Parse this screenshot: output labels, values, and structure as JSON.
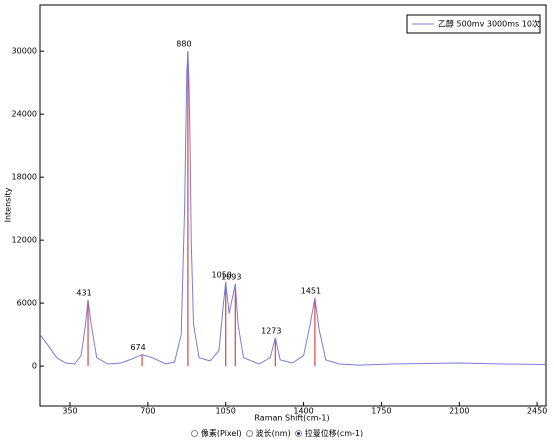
{
  "chart_data": {
    "type": "line",
    "x_label": "Raman Shift(cm-1)",
    "y_label": "Intensity",
    "xlim": [
      215,
      2490
    ],
    "ylim": [
      -3800,
      34400
    ],
    "xticks": [
      350,
      700,
      1050,
      1400,
      1750,
      2100,
      2450
    ],
    "yticks": [
      0,
      6000,
      12000,
      18000,
      24000,
      30000
    ],
    "series": [
      {
        "name": "乙醇 500mv 3000ms 10次",
        "color": "#7b7bd6",
        "x": [
          215,
          250,
          290,
          330,
          370,
          400,
          420,
          431,
          445,
          470,
          520,
          580,
          630,
          674,
          720,
          780,
          820,
          850,
          865,
          875,
          880,
          885,
          890,
          895,
          905,
          930,
          980,
          1020,
          1040,
          1050,
          1065,
          1080,
          1093,
          1105,
          1130,
          1200,
          1250,
          1273,
          1295,
          1350,
          1400,
          1430,
          1451,
          1470,
          1500,
          1560,
          1650,
          1800,
          2100,
          2300,
          2490
        ],
        "values": [
          3000,
          2000,
          800,
          300,
          200,
          1000,
          4000,
          6300,
          4000,
          800,
          200,
          300,
          700,
          1100,
          800,
          200,
          400,
          3000,
          15000,
          28000,
          30000,
          27000,
          21000,
          12000,
          4000,
          800,
          500,
          1500,
          6000,
          8000,
          5000,
          6500,
          7800,
          4000,
          800,
          200,
          800,
          2700,
          600,
          300,
          1000,
          4000,
          6500,
          3500,
          600,
          200,
          100,
          200,
          300,
          200,
          150
        ]
      }
    ],
    "peaks": {
      "color": "#e04040",
      "x": [
        431,
        674,
        880,
        1050,
        1093,
        1273,
        1451
      ],
      "values": [
        6300,
        1100,
        30000,
        8000,
        7800,
        2700,
        6500
      ]
    }
  },
  "controls": {
    "options": [
      "像素(Pixel)",
      "波长(nm)",
      "拉曼位移(cm-1)"
    ],
    "selected": 2
  }
}
